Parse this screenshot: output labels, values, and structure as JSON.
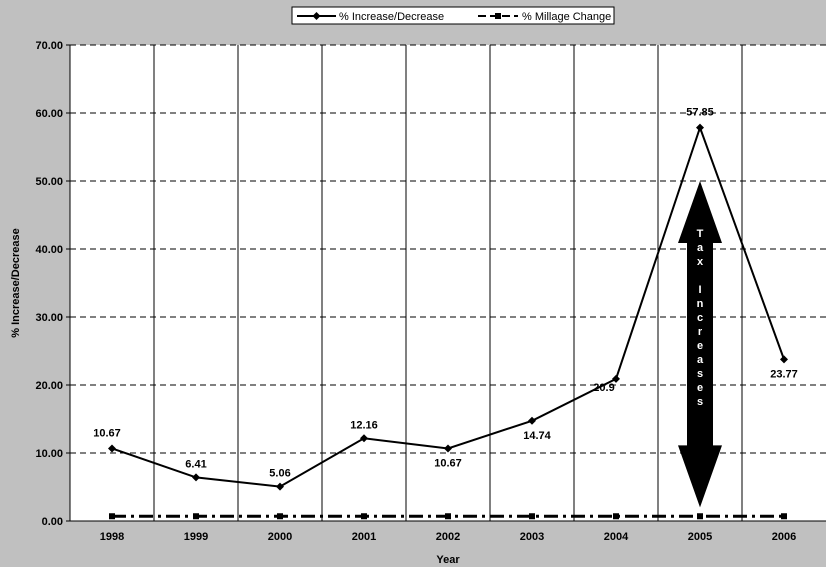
{
  "chart_data": {
    "type": "line",
    "xlabel": "Year",
    "ylabel": "% Increase/Decrease",
    "categories": [
      "1998",
      "1999",
      "2000",
      "2001",
      "2002",
      "2003",
      "2004",
      "2005",
      "2006"
    ],
    "ylim": [
      0,
      70
    ],
    "yticks": [
      "0.00",
      "10.00",
      "20.00",
      "30.00",
      "40.00",
      "50.00",
      "60.00",
      "70.00"
    ],
    "grid": {
      "horizontal": "dashed",
      "vertical": "solid"
    },
    "legend_position": "top-center",
    "series": [
      {
        "name": "% Increase/Decrease",
        "values": [
          10.67,
          6.41,
          5.06,
          12.16,
          10.67,
          14.74,
          20.9,
          57.85,
          23.77
        ],
        "labels": [
          "10.67",
          "6.41",
          "5.06",
          "12.16",
          "10.67",
          "14.74",
          "20.9",
          "57.85",
          "23.77"
        ],
        "marker": "diamond",
        "line_style": "solid",
        "color": "#000000"
      },
      {
        "name": "% Millage Change",
        "values": [
          0.7,
          0.7,
          0.7,
          0.7,
          0.7,
          0.7,
          0.7,
          0.7,
          0.7
        ],
        "marker": "square",
        "line_style": "dashed",
        "color": "#000000"
      }
    ],
    "annotation": {
      "text": "Tax Increases",
      "shape": "double-headed-arrow",
      "category": "2005",
      "y_range": [
        2,
        50
      ],
      "color": "#000000"
    },
    "plot_background": "#ffffff",
    "figure_background": "#c0c0c0"
  }
}
